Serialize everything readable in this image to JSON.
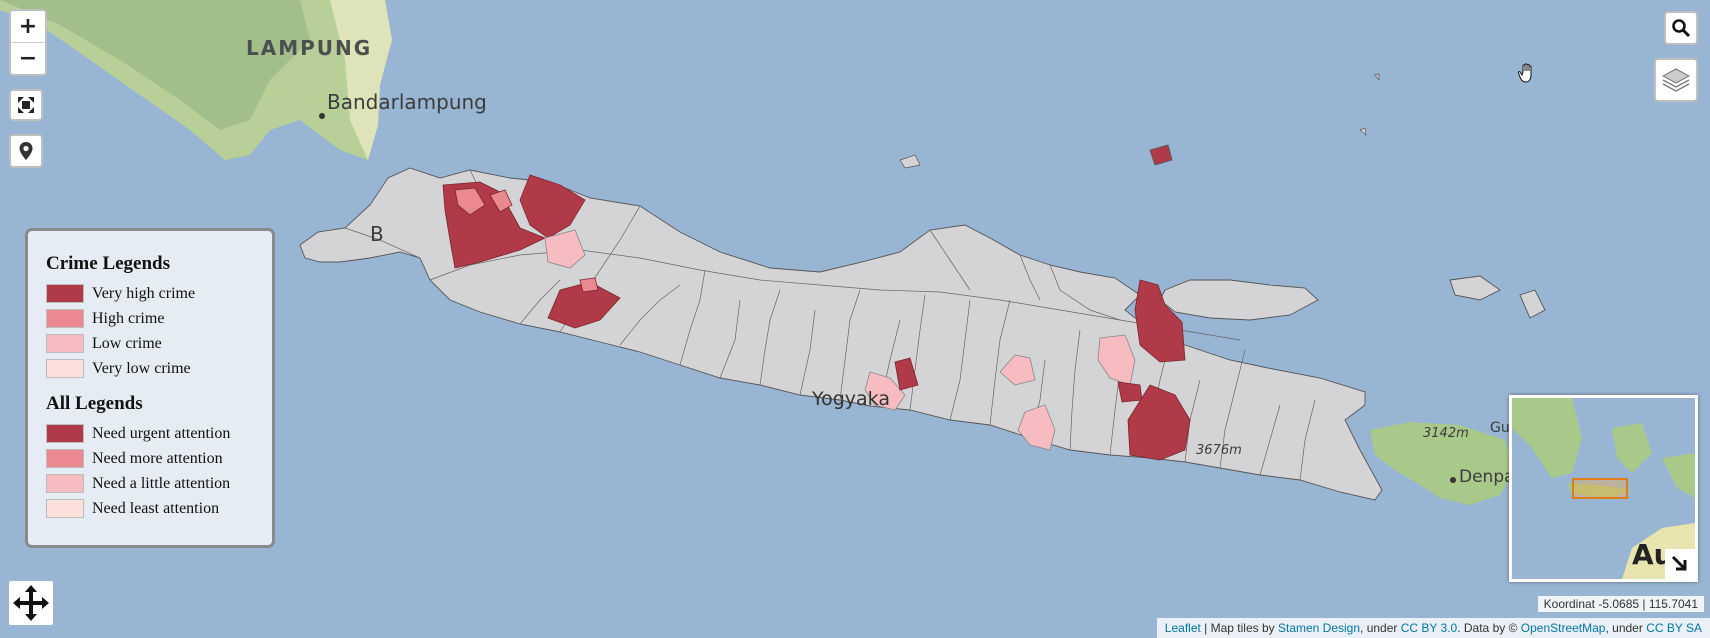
{
  "zoom": {
    "in_label": "+",
    "out_label": "−"
  },
  "map_labels": {
    "lampung": "LAMPUNG",
    "bandarlampung": "Bandarlampung",
    "yogyakarta": "Yogyaka",
    "elevation": "3676m",
    "bali_elevation": "3142m",
    "denpasar": "Denpas",
    "bali_partial": "Gu",
    "australia_partial": "Au",
    "city_b": "B"
  },
  "legend": {
    "crime_title": "Crime Legends",
    "crime_items": [
      {
        "label": "Very high crime",
        "color": "#b03a48"
      },
      {
        "label": "High crime",
        "color": "#ea8a90"
      },
      {
        "label": "Low crime",
        "color": "#f6bcc2"
      },
      {
        "label": "Very low crime",
        "color": "#fbe0dc"
      }
    ],
    "all_title": "All Legends",
    "all_items": [
      {
        "label": "Need urgent attention",
        "color": "#b03a48"
      },
      {
        "label": "Need more attention",
        "color": "#ea8a90"
      },
      {
        "label": "Need a little attention",
        "color": "#f6bcc2"
      },
      {
        "label": "Need least attention",
        "color": "#fbe0dc"
      }
    ]
  },
  "coordinates": "Koordinat -5.0685 | 115.7041",
  "attribution": {
    "leaflet": "Leaflet",
    "sep1": " | Map tiles by ",
    "stamen": "Stamen Design",
    "sep2": ", under ",
    "cc": "CC BY 3.0",
    "sep3": ". Data by © ",
    "osm": "OpenStreetMap",
    "sep4": ", under ",
    "ccsa": "CC BY SA"
  },
  "colors": {
    "sea": "#98b5d3",
    "land_default": "#d4d4d6",
    "terrain": "#a8c98a"
  },
  "icons": [
    "search-icon",
    "layers-icon",
    "fullscreen-icon",
    "location-icon",
    "move-icon",
    "minimap-toggle-icon",
    "hand-cursor-icon"
  ]
}
